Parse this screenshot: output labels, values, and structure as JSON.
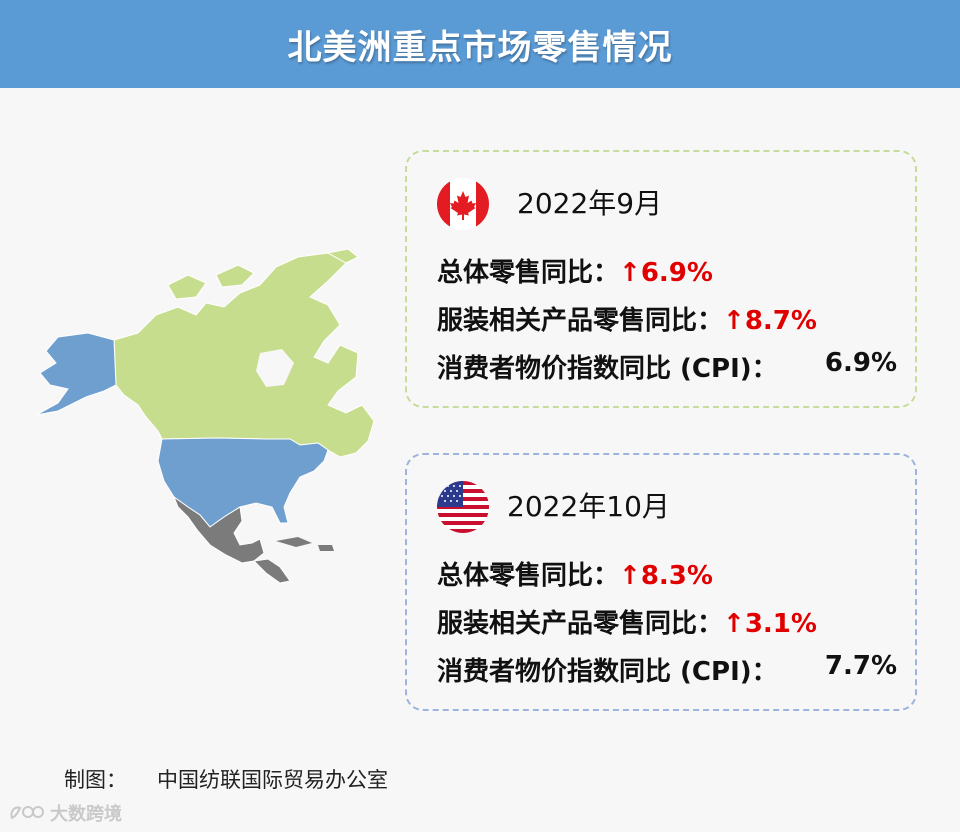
{
  "title": "北美洲重点市场零售情况",
  "canada": {
    "flag": "canada-flag",
    "date": "2022年9月",
    "total_label": "总体零售同比：",
    "total_arrow": "↑",
    "total_value": "6.9%",
    "apparel_label": "服装相关产品零售同比：",
    "apparel_arrow": "↑",
    "apparel_value": "8.7%",
    "cpi_label": "消费者物价指数同比 (CPI)：",
    "cpi_value": "6.9%"
  },
  "usa": {
    "flag": "usa-flag",
    "date": "2022年10月",
    "total_label": "总体零售同比：",
    "total_arrow": "↑",
    "total_value": "8.3%",
    "apparel_label": "服装相关产品零售同比：",
    "apparel_arrow": "↑",
    "apparel_value": "3.1%",
    "cpi_label": "消费者物价指数同比 (CPI)：",
    "cpi_value": "7.7%"
  },
  "footer": {
    "label": "制图：",
    "source": "中国纺联国际贸易办公室"
  },
  "watermark": "大数跨境",
  "colors": {
    "header": "#5b9bd5",
    "canada_map": "#c6dd8d",
    "usa_map": "#6f9fcf",
    "mexico_map": "#7b7b7b",
    "up_red": "#e00000",
    "canada_border": "#c5dc9a",
    "usa_border": "#9db3e0"
  }
}
